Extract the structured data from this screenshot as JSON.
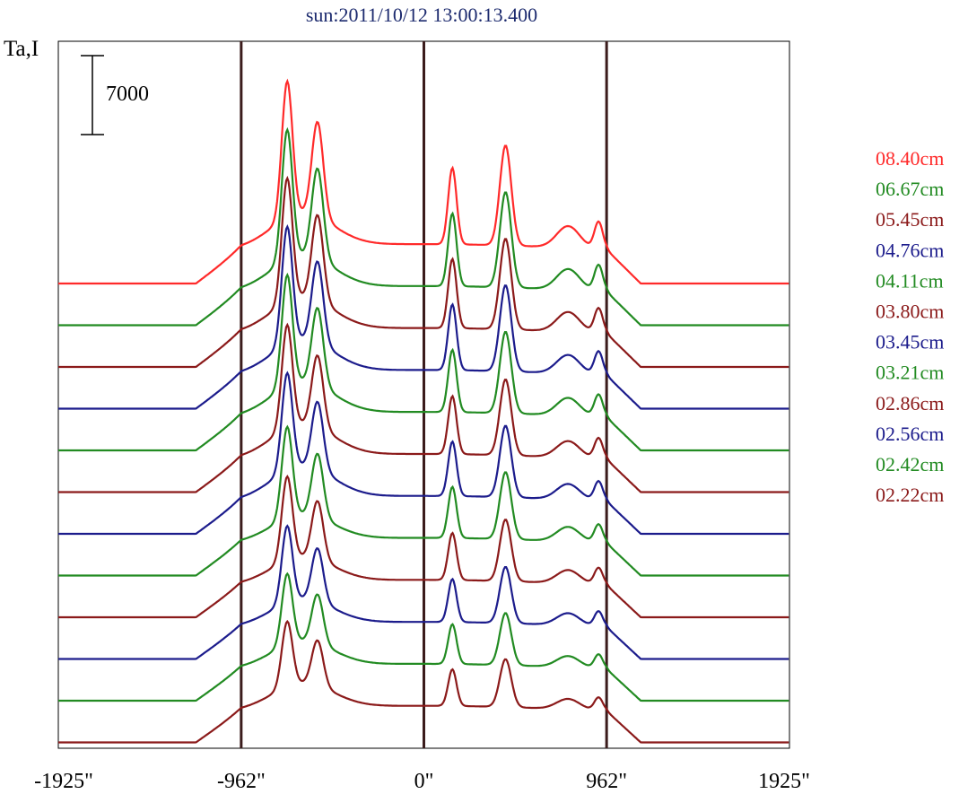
{
  "chart_data": {
    "type": "line",
    "title": "sun:2011/10/12 13:00:13.400",
    "ylabel": "Ta,I",
    "xlabel": "",
    "x_ticks": [
      {
        "value": -1925,
        "label": "-1925\""
      },
      {
        "value": -962,
        "label": "-962\""
      },
      {
        "value": 0,
        "label": "0\""
      },
      {
        "value": 962,
        "label": "962\""
      },
      {
        "value": 1925,
        "label": "1925\""
      }
    ],
    "xlim": [
      -1925,
      1925
    ],
    "vertical_lines": [
      -962,
      0,
      962
    ],
    "scale_bar": {
      "value": 7000,
      "label": "7000"
    },
    "grid": false,
    "legend_position": "right",
    "series": [
      {
        "name": "08.40cm",
        "color": "#ff2a2a",
        "baseline": 0,
        "peak": 0.97
      },
      {
        "name": "06.67cm",
        "color": "#228b22",
        "baseline": 1,
        "peak": 0.93
      },
      {
        "name": "05.45cm",
        "color": "#8b1a1a",
        "baseline": 2,
        "peak": 0.89
      },
      {
        "name": "04.76cm",
        "color": "#1c1c8c",
        "baseline": 3,
        "peak": 0.85
      },
      {
        "name": "04.11cm",
        "color": "#228b22",
        "baseline": 4,
        "peak": 0.81
      },
      {
        "name": "03.80cm",
        "color": "#8b1a1a",
        "baseline": 5,
        "peak": 0.76
      },
      {
        "name": "03.45cm",
        "color": "#1c1c8c",
        "baseline": 6,
        "peak": 0.72
      },
      {
        "name": "03.21cm",
        "color": "#228b22",
        "baseline": 7,
        "peak": 0.68
      },
      {
        "name": "02.86cm",
        "color": "#8b1a1a",
        "baseline": 8,
        "peak": 0.63
      },
      {
        "name": "02.56cm",
        "color": "#1c1c8c",
        "baseline": 9,
        "peak": 0.58
      },
      {
        "name": "02.42cm",
        "color": "#228b22",
        "baseline": 10,
        "peak": 0.54
      },
      {
        "name": "02.22cm",
        "color": "#8b1a1a",
        "baseline": 11,
        "peak": 0.5
      }
    ],
    "extra_traces": [
      {
        "color": "#228b22"
      },
      {
        "color": "#8b1a1a"
      },
      {
        "color": "#1c1c8c"
      },
      {
        "color": "#228b22"
      },
      {
        "color": "#8b1a1a"
      }
    ]
  }
}
